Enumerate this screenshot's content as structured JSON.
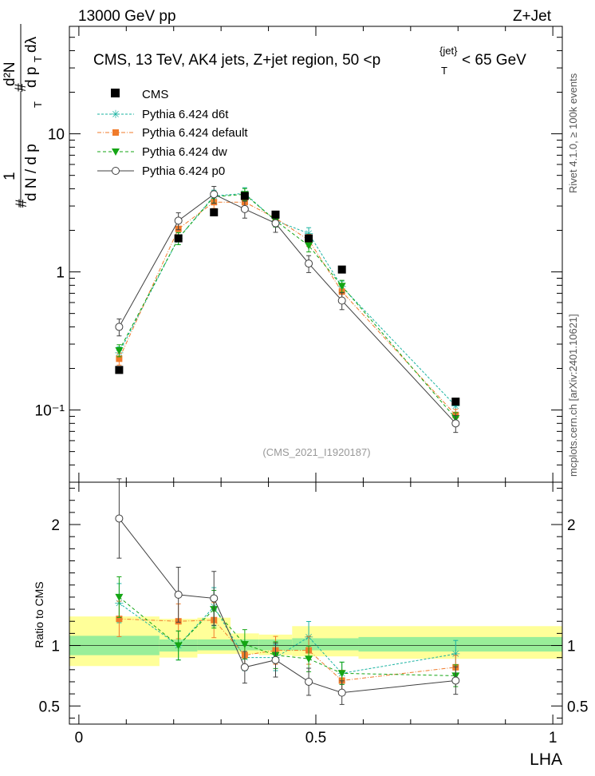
{
  "header": {
    "left": "13000 GeV pp",
    "right": "Z+Jet",
    "plot_title_main": "CMS, 13 TeV, AK4 jets, Z+jet region, 50 <p",
    "plot_title_sup": "{jet}",
    "plot_title_sub": "T",
    "plot_title_tail": "< 65 GeV",
    "side_text_top": "Rivet 4.1.0, ≥ 100k events",
    "side_text_bottom": "mcplots.cern.ch [arXiv:2401.10621]",
    "analysis_id": "(CMS_2021_I1920187)"
  },
  "colors": {
    "cms": "#000000",
    "d6t": "#1ab3a1",
    "default": "#f07b2b",
    "dw": "#14a514",
    "p0": "#404040",
    "band_yellow": "#ffff99",
    "band_green": "#99ee99"
  },
  "chart_data": [
    {
      "type": "scatter",
      "panel": "main",
      "ylabel_parts": [
        "#",
        "1",
        "d N / d p",
        "T",
        "#",
        "d p",
        "T",
        "dλ",
        "d²N"
      ],
      "yscale": "log",
      "ylim": [
        0.03,
        60
      ],
      "xlim": [
        -0.02,
        1.02
      ],
      "ytick_labels": [
        "10⁻¹",
        "1",
        "10"
      ],
      "yticks": [
        0.1,
        1,
        10
      ],
      "legend": [
        "CMS",
        "Pythia 6.424 d6t",
        "Pythia 6.424 default",
        "Pythia 6.424 dw",
        "Pythia 6.424 p0"
      ],
      "x": [
        0.085,
        0.21,
        0.285,
        0.35,
        0.415,
        0.485,
        0.555,
        0.795
      ],
      "series": [
        {
          "name": "CMS",
          "values": [
            0.195,
            1.75,
            2.7,
            3.55,
            2.6,
            1.75,
            1.04,
            0.115
          ]
        },
        {
          "name": "Pythia 6.424 d6t",
          "values": [
            0.26,
            1.75,
            3.55,
            3.7,
            2.35,
            1.9,
            0.78,
            0.107
          ]
        },
        {
          "name": "Pythia 6.424 default",
          "values": [
            0.235,
            2.05,
            3.2,
            3.2,
            2.45,
            1.7,
            0.72,
            0.092
          ]
        },
        {
          "name": "Pythia 6.424 dw",
          "values": [
            0.27,
            1.75,
            3.5,
            3.65,
            2.35,
            1.55,
            0.79,
            0.087
          ]
        },
        {
          "name": "Pythia 6.424 p0",
          "values": [
            0.4,
            2.35,
            3.65,
            2.85,
            2.25,
            1.15,
            0.62,
            0.08
          ]
        }
      ],
      "errors_rel": {
        "Pythia 6.424 d6t": 0.1,
        "Pythia 6.424 default": 0.1,
        "Pythia 6.424 dw": 0.1,
        "Pythia 6.424 p0": 0.14
      }
    },
    {
      "type": "line",
      "panel": "ratio",
      "ylabel": "Ratio to CMS",
      "ylim": [
        0.35,
        2.35
      ],
      "xlim": [
        -0.02,
        1.02
      ],
      "xlabel": "LHA",
      "xtick_labels": [
        "0",
        "0.5",
        "1"
      ],
      "xticks": [
        0,
        0.5,
        1
      ],
      "ytick_labels": [
        "0.5",
        "1",
        "2"
      ],
      "yticks": [
        0.5,
        1,
        2
      ],
      "band_bins": [
        {
          "x0": -0.02,
          "x1": 0.17,
          "stat": [
            0.92,
            1.08
          ],
          "total": [
            0.83,
            1.24
          ]
        },
        {
          "x0": 0.17,
          "x1": 0.25,
          "stat": [
            0.95,
            1.05
          ],
          "total": [
            0.9,
            1.22
          ]
        },
        {
          "x0": 0.25,
          "x1": 0.32,
          "stat": [
            0.96,
            1.05
          ],
          "total": [
            0.93,
            1.23
          ]
        },
        {
          "x0": 0.32,
          "x1": 0.38,
          "stat": [
            0.96,
            1.05
          ],
          "total": [
            0.93,
            1.1
          ]
        },
        {
          "x0": 0.38,
          "x1": 0.45,
          "stat": [
            0.96,
            1.05
          ],
          "total": [
            0.92,
            1.09
          ]
        },
        {
          "x0": 0.45,
          "x1": 0.59,
          "stat": [
            0.96,
            1.06
          ],
          "total": [
            0.91,
            1.16
          ]
        },
        {
          "x0": 0.59,
          "x1": 1.02,
          "stat": [
            0.95,
            1.07
          ],
          "total": [
            0.89,
            1.16
          ]
        }
      ],
      "x": [
        0.085,
        0.21,
        0.285,
        0.35,
        0.415,
        0.485,
        0.555,
        0.795
      ],
      "series": [
        {
          "name": "Pythia 6.424 d6t",
          "values": [
            1.35,
            1.0,
            1.32,
            0.9,
            0.9,
            1.07,
            0.77,
            0.93
          ]
        },
        {
          "name": "Pythia 6.424 default",
          "values": [
            1.22,
            1.2,
            1.21,
            0.92,
            0.96,
            0.96,
            0.71,
            0.82
          ]
        },
        {
          "name": "Pythia 6.424 dw",
          "values": [
            1.4,
            1.0,
            1.3,
            1.01,
            0.92,
            0.89,
            0.77,
            0.75
          ]
        },
        {
          "name": "Pythia 6.424 p0",
          "values": [
            2.05,
            1.42,
            1.39,
            0.82,
            0.88,
            0.7,
            0.61,
            0.71
          ]
        }
      ],
      "errors_rel": {
        "Pythia 6.424 d6t": 0.12,
        "Pythia 6.424 default": 0.12,
        "Pythia 6.424 dw": 0.12,
        "Pythia 6.424 p0": 0.16
      }
    }
  ]
}
